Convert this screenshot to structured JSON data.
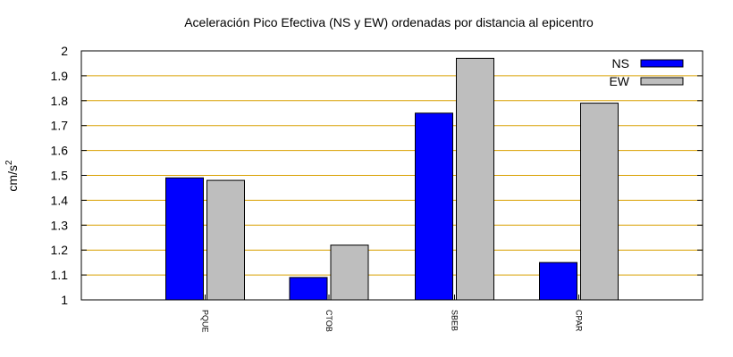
{
  "chart_data": {
    "type": "bar",
    "title": "Aceleración Pico Efectiva (NS y EW) ordenadas por distancia al epicentro",
    "xlabel": "",
    "ylabel": "cm/s²",
    "categories": [
      "PQUE",
      "CTOB",
      "SBEB",
      "CPAR"
    ],
    "series": [
      {
        "name": "NS",
        "values": [
          1.49,
          1.09,
          1.75,
          1.15
        ],
        "color": "#0000ff"
      },
      {
        "name": "EW",
        "values": [
          1.48,
          1.22,
          1.97,
          1.79
        ],
        "color": "#bebebe"
      }
    ],
    "ylim": [
      1,
      2
    ],
    "yticks": [
      "1",
      "1.1",
      "1.2",
      "1.3",
      "1.4",
      "1.5",
      "1.6",
      "1.7",
      "1.8",
      "1.9",
      "2"
    ],
    "grid": true,
    "grid_color": "#d9a000",
    "legend_position": "top-right"
  }
}
